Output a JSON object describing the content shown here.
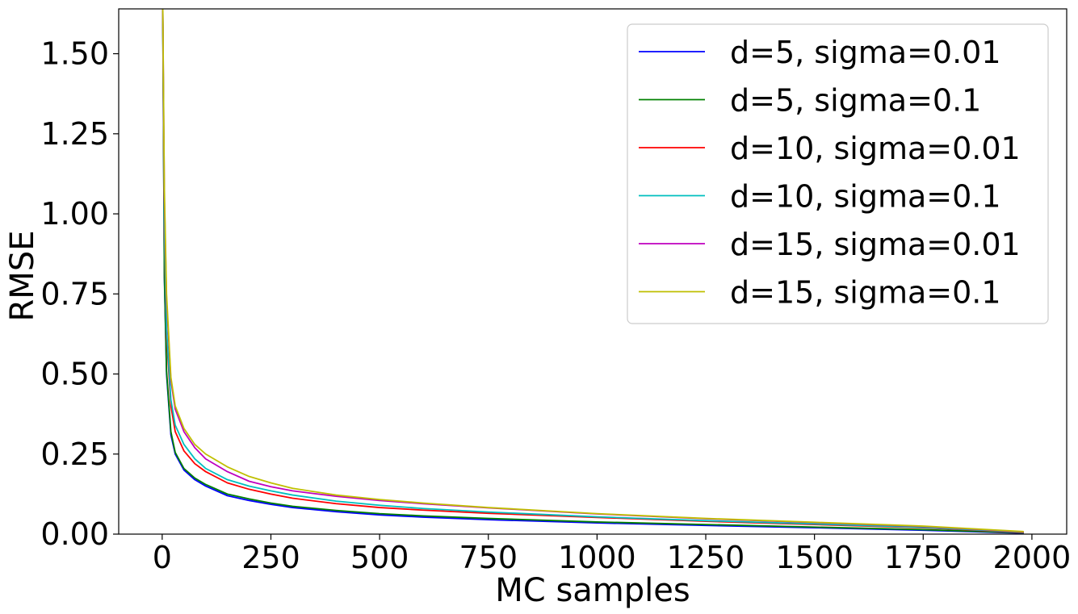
{
  "chart_data": {
    "type": "line",
    "title": "",
    "xlabel": "MC samples",
    "ylabel": "RMSE",
    "xlim": [
      -100,
      2080
    ],
    "ylim": [
      0.0,
      1.64
    ],
    "x_ticks": [
      0,
      250,
      500,
      750,
      1000,
      1250,
      1500,
      1750,
      2000
    ],
    "x_tick_labels": [
      "0",
      "250",
      "500",
      "750",
      "1000",
      "1250",
      "1500",
      "1750",
      "2000"
    ],
    "y_ticks": [
      0.0,
      0.25,
      0.5,
      0.75,
      1.0,
      1.25,
      1.5
    ],
    "y_tick_labels": [
      "0.00",
      "0.25",
      "0.50",
      "0.75",
      "1.00",
      "1.25",
      "1.50"
    ],
    "grid": false,
    "legend_position": "top-right",
    "x": [
      1,
      5,
      10,
      20,
      30,
      50,
      75,
      100,
      150,
      200,
      250,
      300,
      400,
      500,
      600,
      750,
      1000,
      1250,
      1500,
      1750,
      1980
    ],
    "series": [
      {
        "name": "d=5, sigma=0.01",
        "color": "#0000ff",
        "values": [
          1.7,
          0.8,
          0.5,
          0.31,
          0.25,
          0.2,
          0.17,
          0.15,
          0.12,
          0.105,
          0.093,
          0.083,
          0.07,
          0.06,
          0.053,
          0.045,
          0.035,
          0.027,
          0.02,
          0.012,
          0.003
        ]
      },
      {
        "name": "d=5, sigma=0.1",
        "color": "#008000",
        "values": [
          1.7,
          0.81,
          0.51,
          0.32,
          0.255,
          0.205,
          0.175,
          0.155,
          0.125,
          0.11,
          0.097,
          0.087,
          0.074,
          0.064,
          0.057,
          0.049,
          0.038,
          0.03,
          0.022,
          0.014,
          0.004
        ]
      },
      {
        "name": "d=10, sigma=0.01",
        "color": "#ff0000",
        "values": [
          1.7,
          0.95,
          0.62,
          0.4,
          0.32,
          0.26,
          0.22,
          0.195,
          0.16,
          0.14,
          0.125,
          0.112,
          0.095,
          0.083,
          0.075,
          0.065,
          0.052,
          0.04,
          0.03,
          0.02,
          0.005
        ]
      },
      {
        "name": "d=10, sigma=0.1",
        "color": "#00bfbf",
        "values": [
          1.7,
          0.97,
          0.64,
          0.42,
          0.34,
          0.28,
          0.235,
          0.205,
          0.17,
          0.15,
          0.135,
          0.122,
          0.103,
          0.09,
          0.08,
          0.069,
          0.054,
          0.042,
          0.032,
          0.021,
          0.006
        ]
      },
      {
        "name": "d=15, sigma=0.01",
        "color": "#bf00bf",
        "values": [
          1.7,
          1.05,
          0.73,
          0.48,
          0.39,
          0.32,
          0.27,
          0.235,
          0.195,
          0.165,
          0.148,
          0.135,
          0.118,
          0.105,
          0.095,
          0.082,
          0.063,
          0.048,
          0.036,
          0.024,
          0.007
        ]
      },
      {
        "name": "d=15, sigma=0.1",
        "color": "#bfbf00",
        "values": [
          1.7,
          1.08,
          0.75,
          0.49,
          0.4,
          0.33,
          0.28,
          0.25,
          0.21,
          0.18,
          0.16,
          0.143,
          0.122,
          0.108,
          0.097,
          0.083,
          0.064,
          0.049,
          0.037,
          0.025,
          0.008
        ]
      }
    ]
  }
}
